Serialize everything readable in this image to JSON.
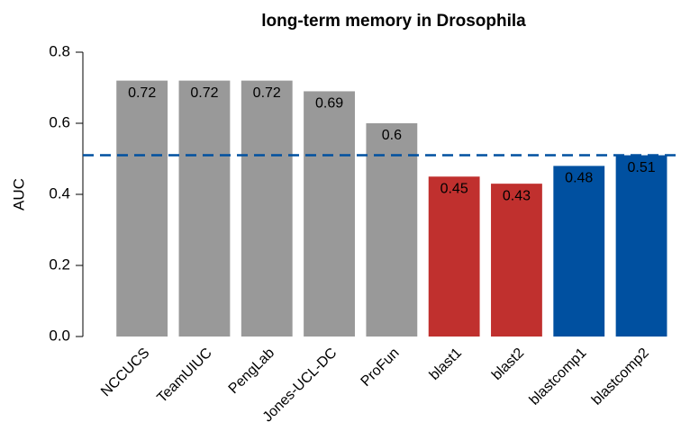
{
  "chart_data": {
    "type": "bar",
    "title": "long-term memory in Drosophila",
    "y_label": "AUC",
    "categories": [
      "NCCUCS",
      "TeamUIUC",
      "PengLab",
      "Jones-UCL-DC",
      "ProFun",
      "blast1",
      "blast2",
      "blastcomp1",
      "blastcomp2"
    ],
    "values": [
      0.72,
      0.72,
      0.72,
      0.69,
      0.6,
      0.45,
      0.43,
      0.48,
      0.51
    ],
    "colors": [
      "#999999",
      "#999999",
      "#999999",
      "#999999",
      "#999999",
      "#c0302e",
      "#c0302e",
      "#0050a0",
      "#0050a0"
    ],
    "reference_line": 0.51,
    "reference_line_color": "#0050a0",
    "ylim": [
      0,
      0.8
    ],
    "yticks": [
      {
        "value": 0,
        "label": "0.0"
      },
      0.2,
      0.4,
      0.6,
      0.8
    ]
  }
}
